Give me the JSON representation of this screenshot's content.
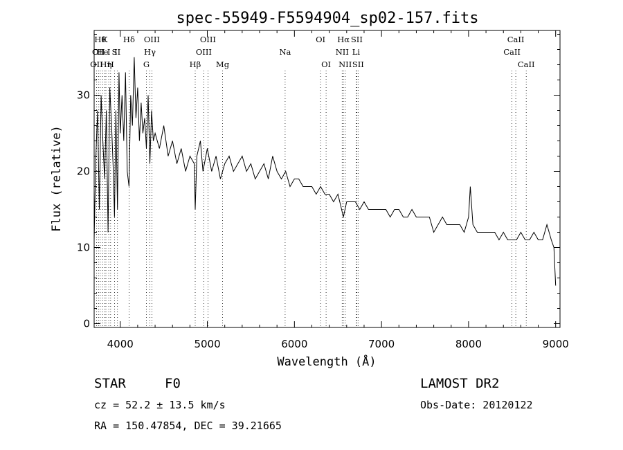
{
  "chart_data": {
    "type": "line",
    "title": "spec-55949-F5594904_sp02-157.fits",
    "xlabel": "Wavelength (Å)",
    "ylabel": "Flux (relative)",
    "xlim": [
      3700,
      9050
    ],
    "ylim": [
      -0.5,
      38.5
    ],
    "xticks": [
      4000,
      5000,
      6000,
      7000,
      8000,
      9000
    ],
    "yticks": [
      0,
      10,
      20,
      30
    ],
    "grid": false,
    "series": [
      {
        "x": [
          3700,
          3720,
          3740,
          3760,
          3780,
          3800,
          3820,
          3840,
          3860,
          3880,
          3900,
          3920,
          3934,
          3950,
          3968,
          3985,
          4000,
          4020,
          4040,
          4060,
          4080,
          4101,
          4120,
          4140,
          4160,
          4180,
          4200,
          4220,
          4240,
          4260,
          4280,
          4300,
          4320,
          4340,
          4360,
          4380,
          4400,
          4450,
          4500,
          4550,
          4600,
          4650,
          4700,
          4750,
          4800,
          4850,
          4861,
          4880,
          4920,
          4950,
          5000,
          5050,
          5100,
          5150,
          5200,
          5250,
          5300,
          5350,
          5400,
          5450,
          5500,
          5550,
          5600,
          5650,
          5700,
          5750,
          5800,
          5850,
          5900,
          5950,
          6000,
          6050,
          6100,
          6150,
          6200,
          6250,
          6300,
          6350,
          6400,
          6450,
          6500,
          6563,
          6600,
          6650,
          6700,
          6750,
          6800,
          6850,
          6900,
          6950,
          7000,
          7050,
          7100,
          7150,
          7200,
          7250,
          7300,
          7350,
          7400,
          7450,
          7500,
          7550,
          7600,
          7650,
          7700,
          7750,
          7800,
          7850,
          7900,
          7950,
          8000,
          8020,
          8050,
          8100,
          8150,
          8200,
          8250,
          8300,
          8350,
          8400,
          8450,
          8500,
          8550,
          8600,
          8650,
          8700,
          8750,
          8800,
          8850,
          8900,
          8950,
          8980,
          9000
        ],
        "y": [
          11,
          22,
          28,
          15,
          30,
          24,
          19,
          28,
          12,
          31,
          26,
          20,
          14,
          28,
          15,
          33,
          25,
          30,
          24,
          33,
          20,
          18,
          30,
          26,
          35,
          27,
          31,
          24,
          29,
          25,
          27,
          23,
          30,
          21,
          28,
          24,
          25,
          23,
          26,
          22,
          24,
          21,
          23,
          20,
          22,
          21,
          15,
          22,
          24,
          20,
          23,
          20,
          22,
          19,
          21,
          22,
          20,
          21,
          22,
          20,
          21,
          19,
          20,
          21,
          19,
          22,
          20,
          19,
          20,
          18,
          19,
          19,
          18,
          18,
          18,
          17,
          18,
          17,
          17,
          16,
          17,
          14,
          16,
          16,
          16,
          15,
          16,
          15,
          15,
          15,
          15,
          15,
          14,
          15,
          15,
          14,
          14,
          15,
          14,
          14,
          14,
          14,
          12,
          13,
          14,
          13,
          13,
          13,
          13,
          12,
          14,
          18,
          13,
          12,
          12,
          12,
          12,
          12,
          11,
          12,
          11,
          11,
          11,
          12,
          11,
          11,
          12,
          11,
          11,
          13,
          11,
          10,
          5
        ]
      }
    ],
    "lines": [
      {
        "w": 3727,
        "row": 2,
        "label": "OII"
      },
      {
        "w": 3750,
        "row": 1,
        "label": "OII"
      },
      {
        "w": 3770,
        "row": 0,
        "label": "Hθ"
      },
      {
        "w": 3797,
        "row": 1,
        "label": "He"
      },
      {
        "w": 3820,
        "row": 0,
        "label": "K"
      },
      {
        "w": 3835,
        "row": 2,
        "label": "Hη"
      },
      {
        "w": 3868,
        "row": 1,
        "label": "I"
      },
      {
        "w": 3889,
        "row": 2,
        "label": "H"
      },
      {
        "w": 3934,
        "row": 1,
        "label": "S"
      },
      {
        "w": 3968,
        "row": 1,
        "label": "II"
      },
      {
        "w": 4101,
        "row": 0,
        "label": "Hδ"
      },
      {
        "w": 4300,
        "row": 2,
        "label": "G"
      },
      {
        "w": 4340,
        "row": 1,
        "label": "Hγ"
      },
      {
        "w": 4363,
        "row": 0,
        "label": "OIII"
      },
      {
        "w": 4861,
        "row": 2,
        "label": "Hβ"
      },
      {
        "w": 4959,
        "row": 1,
        "label": "OIII"
      },
      {
        "w": 5007,
        "row": 0,
        "label": "OIII"
      },
      {
        "w": 5175,
        "row": 2,
        "label": "Mg"
      },
      {
        "w": 5893,
        "row": 1,
        "label": "Na"
      },
      {
        "w": 6300,
        "row": 0,
        "label": "OI"
      },
      {
        "w": 6364,
        "row": 2,
        "label": "OI"
      },
      {
        "w": 6548,
        "row": 1,
        "label": "NII"
      },
      {
        "w": 6563,
        "row": 0,
        "label": "Hα"
      },
      {
        "w": 6583,
        "row": 2,
        "label": "NII"
      },
      {
        "w": 6708,
        "row": 1,
        "label": "Li"
      },
      {
        "w": 6716,
        "row": 0,
        "label": "SII"
      },
      {
        "w": 6731,
        "row": 2,
        "label": "SII"
      },
      {
        "w": 8498,
        "row": 1,
        "label": "CaII"
      },
      {
        "w": 8542,
        "row": 0,
        "label": "CaII"
      },
      {
        "w": 8662,
        "row": 2,
        "label": "CaII"
      }
    ]
  },
  "info": {
    "object_class": "STAR",
    "subclass": "F0",
    "survey": "LAMOST DR2",
    "redshift": "cz = 52.2 ± 13.5 km/s",
    "obs_date": "Obs-Date: 20120122",
    "coords": "RA = 150.47854, DEC =  39.21665"
  }
}
